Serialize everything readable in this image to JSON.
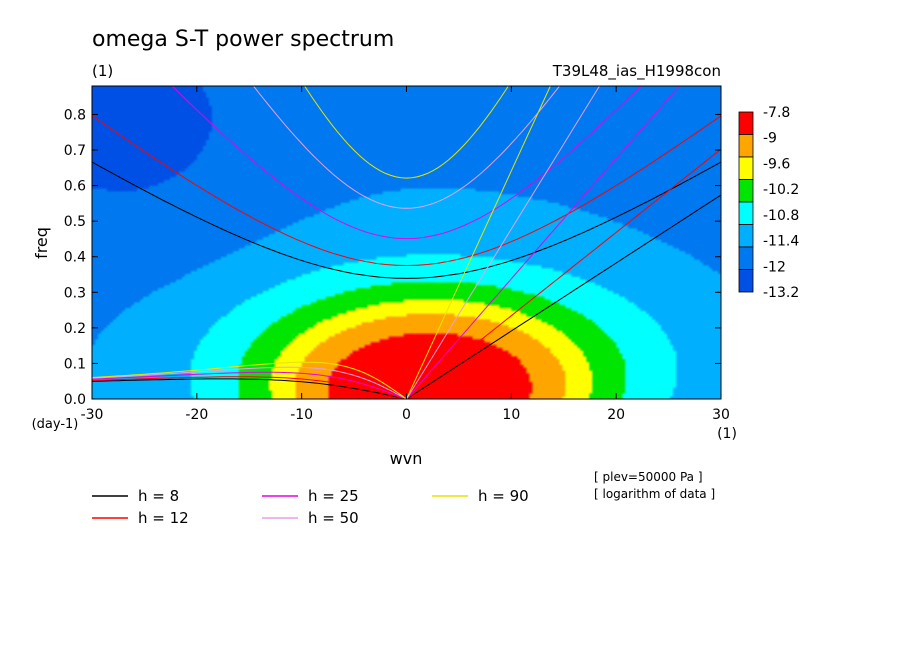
{
  "chart_data": {
    "type": "heatmap",
    "title": "omega S-T power spectrum",
    "subtitle_left": "(1)",
    "subtitle_right": "T39L48_ias_H1998con",
    "xlabel": "wvn",
    "xunit": "(1)",
    "ylabel": "freq",
    "yunit": "(day-1)",
    "xlim": [
      -30,
      30
    ],
    "ylim": [
      0,
      0.88
    ],
    "xticks": [
      -30,
      -20,
      -10,
      0,
      10,
      20,
      30
    ],
    "yticks": [
      0.0,
      0.1,
      0.2,
      0.3,
      0.4,
      0.5,
      0.6,
      0.7,
      0.8
    ],
    "colorbar": {
      "labels": [
        "-7.8",
        "-9",
        "-9.6",
        "-10.2",
        "-10.8",
        "-11.4",
        "-12",
        "-13.2"
      ],
      "colors": [
        "#ff0000",
        "#ffa500",
        "#ffff00",
        "#00e600",
        "#00ffff",
        "#00b0ff",
        "#0078f0",
        "#0050e6"
      ]
    },
    "field": {
      "description_levels": "log10 power, filled contours",
      "peak_value": -7.5,
      "peak_wvn": 0,
      "peak_freq": 0.0
    },
    "dispersion_curves": {
      "legend": [
        {
          "label": "h =  8",
          "color": "#000000"
        },
        {
          "label": "h = 12",
          "color": "#ff0000"
        },
        {
          "label": "h = 25",
          "color": "#e600e6"
        },
        {
          "label": "h = 50",
          "color": "#e6a0e6"
        },
        {
          "label": "h = 90",
          "color": "#e6e600"
        }
      ]
    },
    "notes": [
      "[ plev=50000 Pa ]",
      "[ logarithm of data ]"
    ]
  }
}
